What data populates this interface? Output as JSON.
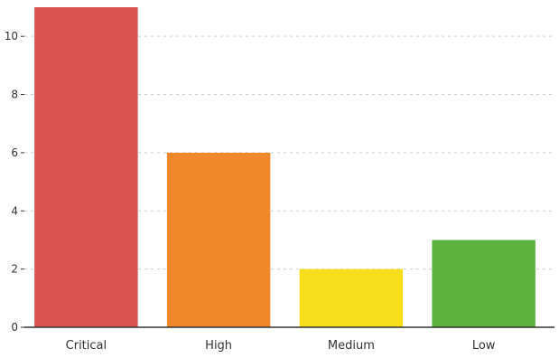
{
  "chart_data": {
    "type": "bar",
    "title": "",
    "xlabel": "",
    "ylabel": "",
    "categories": [
      "Critical",
      "High",
      "Medium",
      "Low"
    ],
    "values": [
      11,
      6,
      2,
      3
    ],
    "colors": [
      "#d9534f",
      "#f0882b",
      "#f7dd1a",
      "#5cb33d"
    ],
    "ylim": [
      0,
      11
    ],
    "yticks": [
      0,
      2,
      4,
      6,
      8,
      10
    ],
    "grid": true,
    "legend": "none"
  },
  "colors": {
    "grid": "#cfcfcf",
    "axis": "#333333",
    "text": "#333333"
  }
}
